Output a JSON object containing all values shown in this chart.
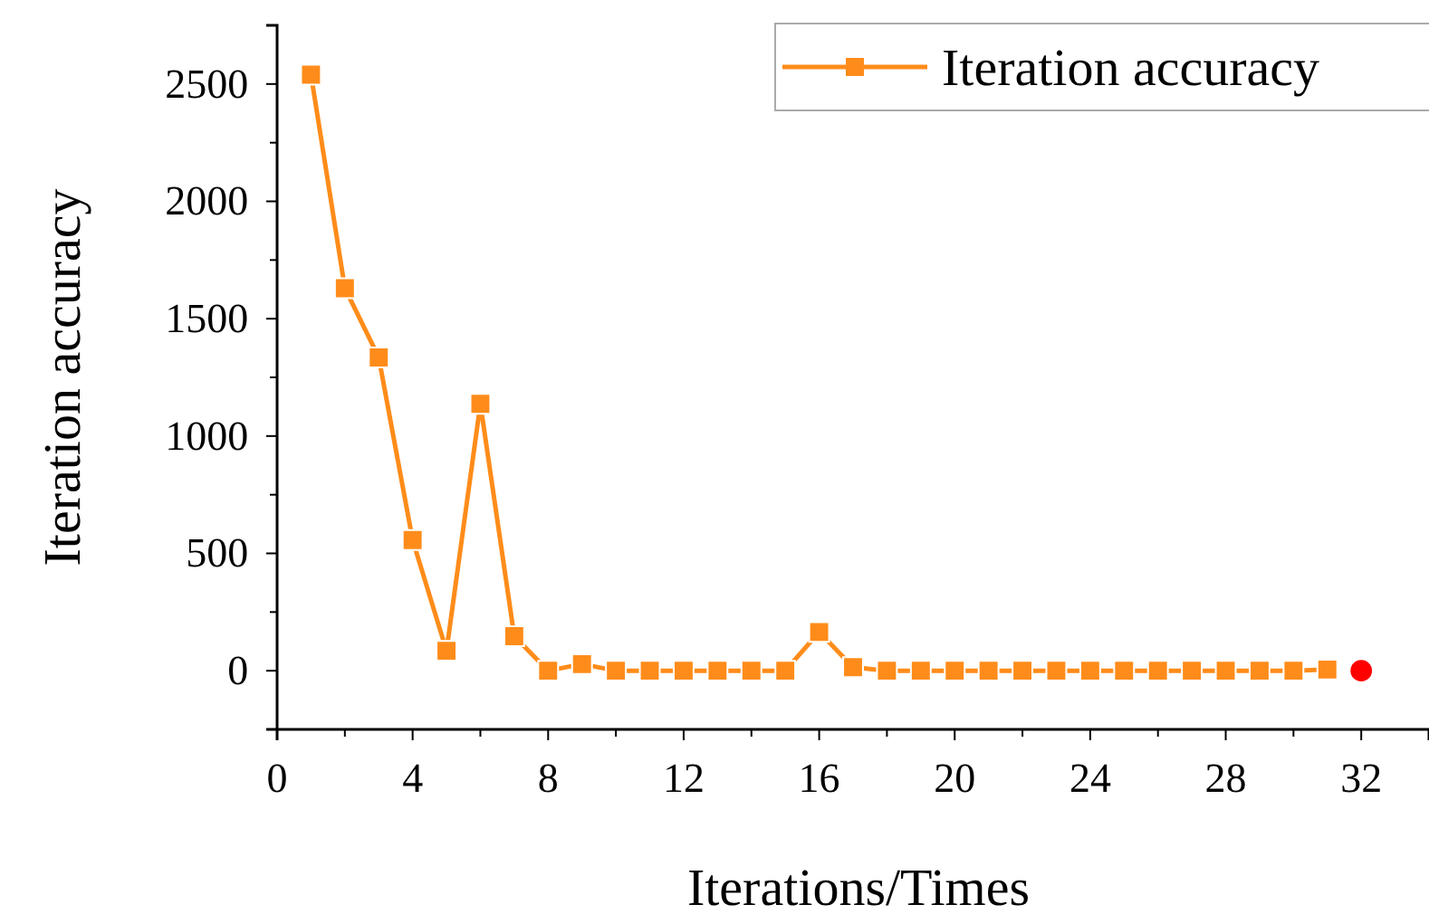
{
  "chart_data": {
    "type": "line",
    "xlabel": "Iterations/Times",
    "ylabel": "Iteration accuracy",
    "xlim": [
      0,
      34
    ],
    "xticks": [
      0,
      4,
      8,
      12,
      16,
      20,
      24,
      28,
      32
    ],
    "ylim": [
      -250,
      2750
    ],
    "yticks": [
      0,
      500,
      1000,
      1500,
      2000,
      2500
    ],
    "legend": "top right",
    "grid": false,
    "line_style": "solid",
    "series": [
      {
        "name": "Iteration accuracy",
        "color": "#ff8c1a",
        "marker": "square",
        "x": [
          1,
          2,
          3,
          4,
          5,
          6,
          7,
          8,
          9,
          10,
          11,
          12,
          13,
          14,
          15,
          16,
          17,
          18,
          19,
          20,
          21,
          22,
          23,
          24,
          25,
          26,
          27,
          28,
          29,
          30,
          31
        ],
        "values": [
          2540,
          1630,
          1335,
          557,
          85,
          1137,
          147,
          0,
          28,
          0,
          0,
          0,
          0,
          0,
          0,
          165,
          15,
          0,
          0,
          0,
          0,
          0,
          0,
          0,
          0,
          0,
          0,
          0,
          0,
          0,
          5
        ]
      },
      {
        "type": "scatter",
        "color": "#ff0000",
        "marker": "circle",
        "x": [
          32
        ],
        "values": [
          0
        ]
      }
    ]
  }
}
